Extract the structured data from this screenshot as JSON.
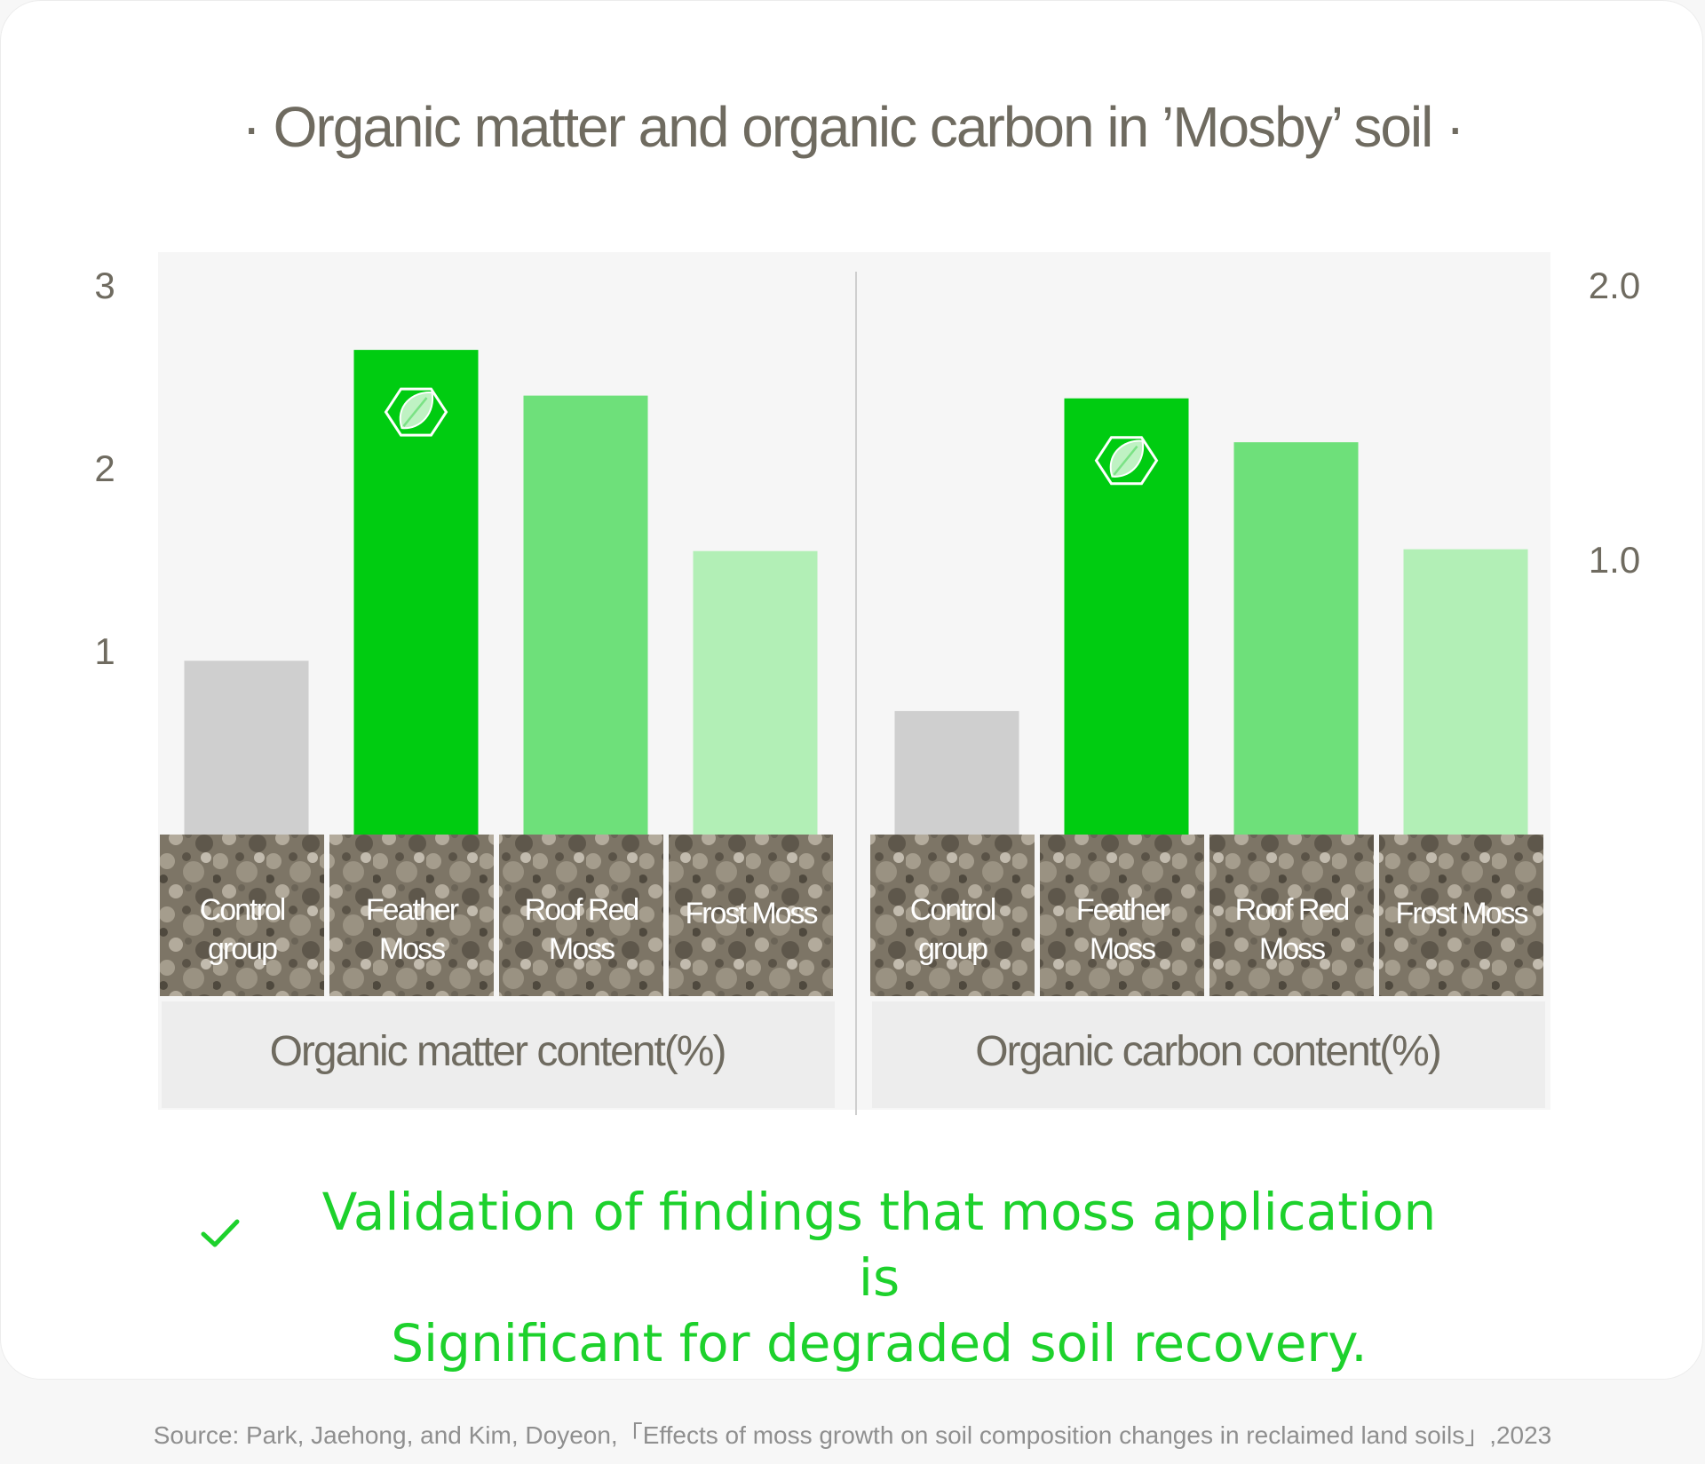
{
  "title": "· Organic matter and organic carbon in ’Mosby’ soil ·",
  "colors": {
    "control": "#cfcfcf",
    "feather": "#00cc11",
    "roofred": "#6ee07a",
    "frost": "#b2efb6",
    "text": "#6f6b60",
    "accent": "#1dd12c",
    "soil": "#7d7566"
  },
  "chart_data": [
    {
      "type": "bar",
      "xlabel": "Organic matter content(%)",
      "categories": [
        "Control\ngroup",
        "Feather\nMoss",
        "Roof Red\nMoss",
        "Frost Moss"
      ],
      "values": [
        0.95,
        2.65,
        2.4,
        1.55
      ],
      "ylim": [
        0,
        3
      ],
      "yticks": [
        {
          "value": 1,
          "label": "1"
        },
        {
          "value": 2,
          "label": "2"
        },
        {
          "value": 3,
          "label": "3"
        }
      ],
      "axis_side": "left",
      "highlight": "Feather\nMoss",
      "highlight_icon": "leaf-hexagon-icon"
    },
    {
      "type": "bar",
      "xlabel": "Organic carbon content(%)",
      "categories": [
        "Control\ngroup",
        "Feather\nMoss",
        "Roof Red\nMoss",
        "Frost Moss"
      ],
      "values": [
        0.45,
        1.59,
        1.43,
        1.04
      ],
      "ylim": [
        0,
        2.0
      ],
      "yticks": [
        {
          "value": 1.0,
          "label": "1.0"
        },
        {
          "value": 2.0,
          "label": "2.0"
        }
      ],
      "axis_side": "right",
      "highlight": "Feather\nMoss",
      "highlight_icon": "leaf-hexagon-icon"
    }
  ],
  "conclusion": {
    "line1": "Validation of findings that moss application is",
    "line2": "Significant for degraded soil recovery.",
    "icon": "check-icon"
  },
  "source": "Source: Park, Jaehong, and Kim, Doyeon,「Effects of moss growth on soil composition changes in reclaimed land soils」,2023"
}
